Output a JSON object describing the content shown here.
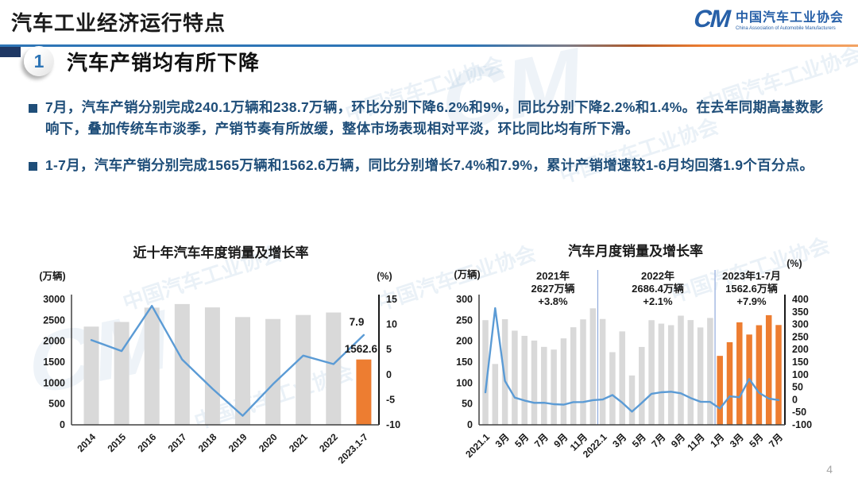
{
  "header": {
    "title": "汽车工业经济运行特点",
    "logo": {
      "acronym": "CM",
      "org_cn": "中国汽车工业协会",
      "org_en": "China Association of Automobile Manufacturers"
    }
  },
  "section": {
    "number": "1",
    "heading": "汽车产销均有所下降"
  },
  "bullets": [
    "7月，汽车产销分别完成240.1万辆和238.7万辆，环比分别下降6.2%和9%，同比分别下降2.2%和1.4%。在去年同期高基数影响下，叠加传统车市淡季，产销节奏有所放缓，整体市场表现相对平淡，环比同比均有所下滑。",
    "1-7月，汽车产销分别完成1565万辆和1562.6万辆，同比分别增长7.4%和7.9%，累计产销增速较1-6月均回落1.9个百分点。"
  ],
  "page_number": "4",
  "watermark_text": "中国汽车工业协会",
  "colors": {
    "accent_blue": "#2E75B6",
    "navy": "#1F3864",
    "body_text": "#1F4E79",
    "bar_gray": "#D9D9D9",
    "bar_orange": "#ED7D31",
    "line_blue": "#5B9BD5",
    "divider_blue": "#8FAADC"
  },
  "chart_data": [
    {
      "type": "bar",
      "subtype": "bar+line-dual-axis",
      "title": "近十年汽车年度销量及增长率",
      "unit_left": "(万辆)",
      "unit_right": "(%)",
      "categories": [
        "2014",
        "2015",
        "2016",
        "2017",
        "2018",
        "2019",
        "2020",
        "2021",
        "2022",
        "2023.1-7"
      ],
      "series": [
        {
          "name": "年度销量(万辆)",
          "type": "bar",
          "axis": "left",
          "values": [
            2349,
            2460,
            2803,
            2888,
            2808,
            2577,
            2531,
            2627,
            2686,
            1562.6
          ]
        },
        {
          "name": "增长率(%)",
          "type": "line",
          "axis": "right",
          "values": [
            6.9,
            4.7,
            13.7,
            3.0,
            -2.8,
            -8.2,
            -1.9,
            3.8,
            2.1,
            7.9
          ]
        }
      ],
      "highlight_from": 9,
      "left_axis": {
        "min": 0,
        "max": 3000,
        "step": 500
      },
      "right_axis": {
        "min": -10,
        "max": 15,
        "step": 5
      },
      "point_labels": {
        "line_end": "7.9",
        "highlight_bar": "1562.6"
      },
      "x_ticks": [
        {
          "i": 0,
          "label": "2014"
        },
        {
          "i": 1,
          "label": "2015"
        },
        {
          "i": 2,
          "label": "2016"
        },
        {
          "i": 3,
          "label": "2017"
        },
        {
          "i": 4,
          "label": "2018"
        },
        {
          "i": 5,
          "label": "2019"
        },
        {
          "i": 6,
          "label": "2020"
        },
        {
          "i": 7,
          "label": "2021"
        },
        {
          "i": 8,
          "label": "2022"
        },
        {
          "i": 9,
          "label": "2023.1-7"
        }
      ],
      "grid": false,
      "legend": "none"
    },
    {
      "type": "bar",
      "subtype": "bar+line-dual-axis",
      "title": "汽车月度销量及增长率",
      "unit_left": "(万辆)",
      "unit_right": "(%)",
      "series": [
        {
          "name": "月度销量(万辆)",
          "type": "bar",
          "axis": "left",
          "values": [
            250.3,
            145.5,
            252.6,
            225.2,
            212.8,
            201.5,
            186.4,
            179.9,
            206.7,
            233.3,
            252.2,
            278.6,
            253.1,
            173.7,
            223.4,
            118.1,
            186.2,
            250.2,
            242.0,
            238.3,
            261.0,
            250.5,
            232.8,
            255.6,
            164.9,
            197.6,
            245.1,
            215.9,
            238.2,
            262.2,
            238.7
          ]
        },
        {
          "name": "同比增长率(%)",
          "type": "line",
          "axis": "right",
          "values": [
            29.5,
            364.8,
            74.9,
            8.6,
            -3.1,
            -12.4,
            -11.9,
            -17.8,
            -19.6,
            -9.4,
            -9.1,
            -1.6,
            0.9,
            18.7,
            -11.7,
            -47.6,
            -12.6,
            23.8,
            29.7,
            32.1,
            25.7,
            6.9,
            -7.9,
            -8.4,
            -35.0,
            13.5,
            9.7,
            82.7,
            27.9,
            4.8,
            -1.4
          ]
        }
      ],
      "highlight_from": 24,
      "left_axis": {
        "min": 0,
        "max": 300,
        "step": 50
      },
      "right_axis": {
        "min": -100,
        "max": 400,
        "step": 50
      },
      "dividers": [
        12,
        24
      ],
      "annotations": [
        {
          "lines": [
            "2021年",
            "2627万辆",
            "+3.8%"
          ]
        },
        {
          "lines": [
            "2022年",
            "2686.4万辆",
            "+2.1%"
          ]
        },
        {
          "lines": [
            "2023年1-7月",
            "1562.6万辆",
            "+7.9%"
          ]
        }
      ],
      "x_ticks": [
        {
          "i": 0,
          "label": "2021.1"
        },
        {
          "i": 2,
          "label": "3月"
        },
        {
          "i": 4,
          "label": "5月"
        },
        {
          "i": 6,
          "label": "7月"
        },
        {
          "i": 8,
          "label": "9月"
        },
        {
          "i": 10,
          "label": "11月"
        },
        {
          "i": 12,
          "label": "2022.1"
        },
        {
          "i": 14,
          "label": "3月"
        },
        {
          "i": 16,
          "label": "5月"
        },
        {
          "i": 18,
          "label": "7月"
        },
        {
          "i": 20,
          "label": "9月"
        },
        {
          "i": 22,
          "label": "11月"
        },
        {
          "i": 24,
          "label": "1月"
        },
        {
          "i": 26,
          "label": "3月"
        },
        {
          "i": 28,
          "label": "5月"
        },
        {
          "i": 30,
          "label": "7月"
        }
      ],
      "grid": false,
      "legend": "none"
    }
  ]
}
